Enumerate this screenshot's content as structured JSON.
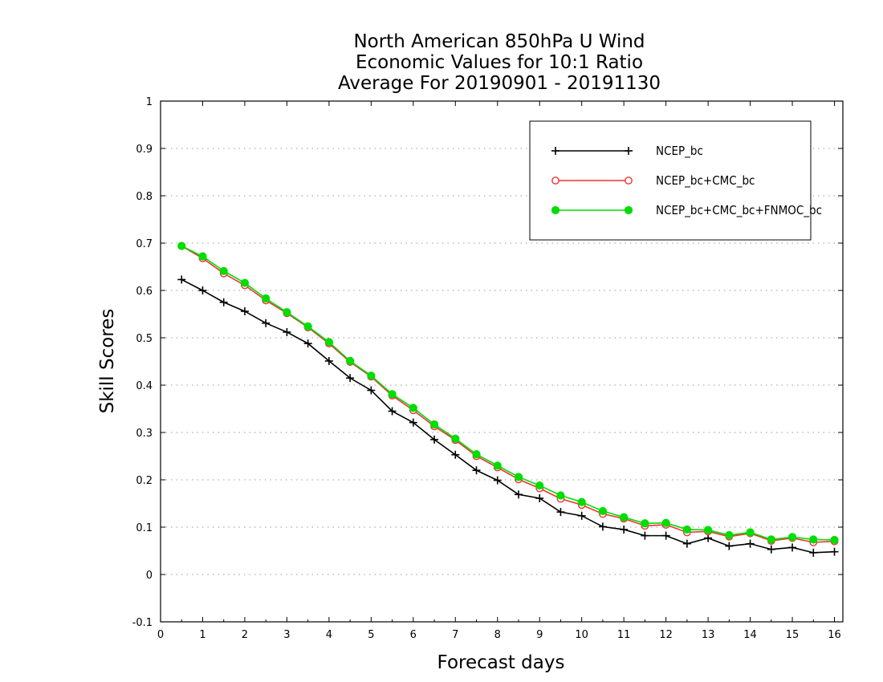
{
  "chart_data": {
    "type": "line",
    "title_lines": [
      "North American 850hPa U Wind",
      "Economic Values for 10:1 Ratio",
      "Average For 20190901 - 20191130"
    ],
    "xlabel": "Forecast days",
    "ylabel": "Skill Scores",
    "xlim": [
      0,
      16.2
    ],
    "ylim": [
      -0.1,
      1.0
    ],
    "x_ticks": [
      0,
      1,
      2,
      3,
      4,
      5,
      6,
      7,
      8,
      9,
      10,
      11,
      12,
      13,
      14,
      15,
      16
    ],
    "y_ticks": [
      -0.1,
      0,
      0.1,
      0.2,
      0.3,
      0.4,
      0.5,
      0.6,
      0.7,
      0.8,
      0.9,
      1
    ],
    "y_tick_labels": [
      "-0.1",
      "0",
      "0.1",
      "0.2",
      "0.3",
      "0.4",
      "0.5",
      "0.6",
      "0.7",
      "0.8",
      "0.9",
      "1"
    ],
    "grid": "horizontal-dotted",
    "legend_position": "top-right",
    "x": [
      0.5,
      1,
      1.5,
      2,
      2.5,
      3,
      3.5,
      4,
      4.5,
      5,
      5.5,
      6,
      6.5,
      7,
      7.5,
      8,
      8.5,
      9,
      9.5,
      10,
      10.5,
      11,
      11.5,
      12,
      12.5,
      13,
      13.5,
      14,
      14.5,
      15,
      15.5,
      16
    ],
    "series": [
      {
        "name": "NCEP_bc",
        "color": "#000000",
        "marker": "plus",
        "values": [
          0.623,
          0.6,
          0.575,
          0.556,
          0.531,
          0.512,
          0.488,
          0.451,
          0.415,
          0.389,
          0.345,
          0.321,
          0.285,
          0.253,
          0.22,
          0.199,
          0.169,
          0.161,
          0.132,
          0.124,
          0.101,
          0.095,
          0.082,
          0.082,
          0.065,
          0.077,
          0.06,
          0.065,
          0.053,
          0.057,
          0.046,
          0.048
        ]
      },
      {
        "name": "NCEP_bc+CMC_bc",
        "color": "#ee3333",
        "marker": "open-circle",
        "values": [
          0.694,
          0.668,
          0.636,
          0.611,
          0.579,
          0.552,
          0.522,
          0.488,
          0.449,
          0.418,
          0.378,
          0.347,
          0.313,
          0.284,
          0.25,
          0.226,
          0.201,
          0.182,
          0.16,
          0.147,
          0.128,
          0.118,
          0.103,
          0.105,
          0.089,
          0.091,
          0.08,
          0.087,
          0.071,
          0.077,
          0.068,
          0.07
        ]
      },
      {
        "name": "NCEP_bc+CMC_bc+FNMOC_bc",
        "color": "#00dd00",
        "marker": "filled-circle",
        "values": [
          0.694,
          0.672,
          0.641,
          0.616,
          0.583,
          0.554,
          0.524,
          0.491,
          0.451,
          0.42,
          0.381,
          0.352,
          0.317,
          0.287,
          0.254,
          0.23,
          0.206,
          0.188,
          0.167,
          0.153,
          0.134,
          0.121,
          0.108,
          0.109,
          0.095,
          0.094,
          0.083,
          0.089,
          0.074,
          0.079,
          0.074,
          0.073
        ]
      }
    ]
  }
}
